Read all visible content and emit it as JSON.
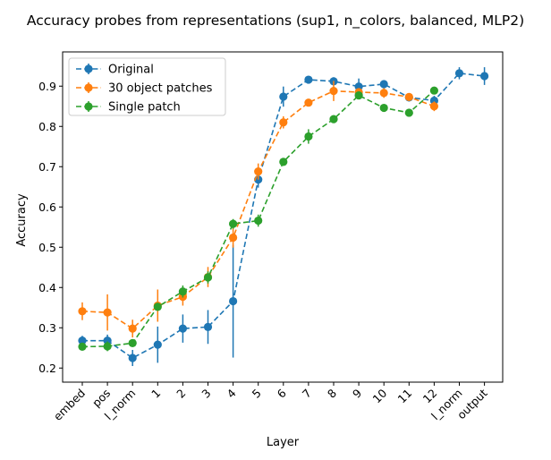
{
  "chart_data": {
    "type": "line",
    "title": "Accuracy probes from representations (sup1, n_colors, balanced, MLP2)",
    "xlabel": "Layer",
    "ylabel": "Accuracy",
    "categories": [
      "embed",
      "pos",
      "l_norm",
      "1",
      "2",
      "3",
      "4",
      "5",
      "6",
      "7",
      "8",
      "9",
      "10",
      "11",
      "12",
      "l_norm",
      "output"
    ],
    "ylim": [
      0.165,
      0.985
    ],
    "yticks": [
      0.2,
      0.3,
      0.4,
      0.5,
      0.6,
      0.7,
      0.8,
      0.9
    ],
    "grid": false,
    "legend_position": "top-left",
    "series": [
      {
        "name": "Original",
        "color": "#1f77b4",
        "values": [
          0.268,
          0.268,
          0.225,
          0.258,
          0.298,
          0.302,
          0.366,
          0.668,
          0.874,
          0.916,
          0.912,
          0.899,
          0.905,
          0.872,
          0.864,
          0.932,
          0.925
        ],
        "errors": [
          0.012,
          0.015,
          0.02,
          0.045,
          0.035,
          0.042,
          0.14,
          0.02,
          0.025,
          0.008,
          0.01,
          0.02,
          0.008,
          0.01,
          0.012,
          0.015,
          0.022
        ]
      },
      {
        "name": "30 object patches",
        "color": "#ff7f0e",
        "values": [
          0.341,
          0.338,
          0.298,
          0.355,
          0.377,
          0.426,
          0.524,
          0.688,
          0.81,
          0.859,
          0.888,
          0.885,
          0.883,
          0.873,
          0.85,
          null,
          null
        ],
        "errors": [
          0.022,
          0.045,
          0.022,
          0.04,
          0.022,
          0.025,
          0.025,
          0.02,
          0.015,
          0.008,
          0.025,
          0.01,
          0.012,
          0.008,
          0.012,
          null,
          null
        ]
      },
      {
        "name": "Single patch",
        "color": "#2ca02c",
        "values": [
          0.253,
          0.254,
          0.262,
          0.352,
          0.39,
          0.425,
          0.558,
          0.566,
          0.712,
          0.775,
          0.818,
          0.877,
          0.846,
          0.834,
          0.889,
          null,
          null
        ],
        "errors": [
          0.008,
          0.012,
          0.008,
          0.01,
          0.015,
          0.015,
          0.012,
          0.015,
          0.008,
          0.018,
          0.008,
          0.008,
          0.008,
          0.006,
          0.006,
          null,
          null
        ]
      }
    ]
  }
}
